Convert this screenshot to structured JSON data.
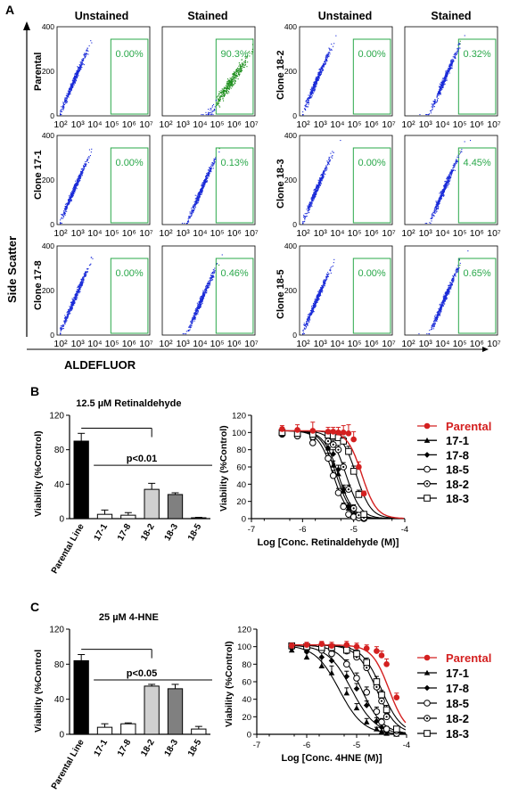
{
  "panels": {
    "A": "A",
    "B": "B",
    "C": "C"
  },
  "flow": {
    "header_unstained": "Unstained",
    "header_stained": "Stained",
    "y_axis_label": "Side Scatter",
    "x_axis_label": "ALDEFLUOR",
    "x_ticks": [
      "10²",
      "10³",
      "10⁴",
      "10⁵",
      "10⁶",
      "10⁷"
    ],
    "y_ticks": [
      "0",
      "200",
      "400"
    ],
    "dot_color": "#1a2bd8",
    "gated_color": "#1f8f1f",
    "gate_color": "#2aa84a",
    "rows": [
      {
        "left_label": "Parental",
        "left_unstained": "0.00%",
        "left_stained": "90.3%",
        "right_label": "Clone 18-2",
        "right_unstained": "0.00%",
        "right_stained": "0.32%"
      },
      {
        "left_label": "Clone 17-1",
        "left_unstained": "0.00%",
        "left_stained": "0.13%",
        "right_label": "Clone 18-3",
        "right_unstained": "0.00%",
        "right_stained": "4.45%"
      },
      {
        "left_label": "Clone 17-8",
        "left_unstained": "0.00%",
        "left_stained": "0.46%",
        "right_label": "Clone 18-5",
        "right_unstained": "0.00%",
        "right_stained": "0.65%"
      }
    ]
  },
  "chart_data": [
    {
      "type": "bar",
      "title": "12.5 µM Retinaldehyde",
      "ylabel": "Viability (%Control)",
      "xlabel": "",
      "categories": [
        "Parental Line",
        "17-1",
        "17-8",
        "18-2",
        "18-3",
        "18-5"
      ],
      "values": [
        90,
        5,
        4,
        34,
        28,
        1
      ],
      "errors": [
        9,
        5,
        3,
        7,
        2,
        0.5
      ],
      "colors": [
        "#000000",
        "#ffffff",
        "#ffffff",
        "#d0d0d0",
        "#808080",
        "#ffffff"
      ],
      "ylim": [
        0,
        120
      ],
      "yticks": [
        "0",
        "40",
        "80",
        "120"
      ],
      "significance": "p<0.01"
    },
    {
      "type": "line",
      "xlabel": "Log [Conc. Retinaldehyde (M)]",
      "ylabel": "Viability (%Control)",
      "xlim": [
        -7,
        -4
      ],
      "ylim": [
        0,
        120
      ],
      "xticks": [
        "-7",
        "-6",
        "-5",
        "-4"
      ],
      "yticks": [
        "0",
        "20",
        "40",
        "60",
        "80",
        "100",
        "120"
      ],
      "x": [
        -6.4,
        -6.1,
        -5.8,
        -5.5,
        -5.4,
        -5.3,
        -5.2,
        -5.1,
        -5.0,
        -4.9,
        -4.8
      ],
      "series": [
        {
          "name": "Parental",
          "color": "#d42020",
          "marker": "circle-filled",
          "ic50": -4.84,
          "hill": 3,
          "values": [
            104,
            103,
            102,
            101,
            101,
            100,
            100,
            99,
            92,
            60,
            29
          ],
          "errors": [
            4,
            6,
            10,
            5,
            5,
            6,
            8,
            10,
            9,
            6,
            3
          ]
        },
        {
          "name": "17-1",
          "color": "#000000",
          "marker": "triangle-filled",
          "ic50": -5.34,
          "hill": 3,
          "values": [
            101,
            99,
            95,
            82,
            62,
            52,
            32,
            12,
            4,
            1,
            0
          ],
          "errors": [
            3,
            4,
            5,
            6,
            5,
            5,
            5,
            4,
            2,
            1,
            0
          ]
        },
        {
          "name": "17-8",
          "color": "#000000",
          "marker": "diamond-filled",
          "ic50": -5.3,
          "hill": 3,
          "values": [
            100,
            98,
            92,
            82,
            75,
            57,
            34,
            14,
            5,
            1,
            0
          ],
          "errors": [
            3,
            4,
            5,
            5,
            5,
            5,
            5,
            4,
            2,
            1,
            0
          ]
        },
        {
          "name": "18-5",
          "color": "#000000",
          "marker": "circle-open",
          "ic50": -5.4,
          "hill": 3,
          "values": [
            98,
            96,
            88,
            70,
            50,
            30,
            14,
            5,
            2,
            1,
            0
          ],
          "errors": [
            3,
            4,
            5,
            6,
            6,
            5,
            4,
            2,
            1,
            1,
            0
          ]
        },
        {
          "name": "18-2",
          "color": "#000000",
          "marker": "circle-dot",
          "ic50": -5.15,
          "hill": 3,
          "values": [
            99,
            96,
            95,
            90,
            86,
            80,
            60,
            34,
            12,
            4,
            1
          ],
          "errors": [
            3,
            5,
            5,
            4,
            5,
            5,
            5,
            5,
            4,
            2,
            1
          ]
        },
        {
          "name": "18-3",
          "color": "#000000",
          "marker": "square-open",
          "ic50": -4.95,
          "hill": 3,
          "values": [
            100,
            99,
            98,
            97,
            96,
            94,
            90,
            78,
            55,
            28,
            5
          ],
          "errors": [
            3,
            4,
            5,
            4,
            4,
            5,
            5,
            6,
            6,
            5,
            2
          ]
        }
      ]
    },
    {
      "type": "bar",
      "title": "25 µM 4-HNE",
      "ylabel": "Viability (%Control",
      "xlabel": "",
      "categories": [
        "Parental Line",
        "17-1",
        "17-8",
        "18-2",
        "18-3",
        "18-5"
      ],
      "values": [
        84,
        8,
        12,
        55,
        52,
        6
      ],
      "errors": [
        7,
        4,
        1,
        2,
        5,
        3
      ],
      "colors": [
        "#000000",
        "#ffffff",
        "#ffffff",
        "#d0d0d0",
        "#808080",
        "#ffffff"
      ],
      "ylim": [
        0,
        120
      ],
      "yticks": [
        "0",
        "40",
        "80",
        "120"
      ],
      "significance": "p<0.05"
    },
    {
      "type": "line",
      "xlabel": "Log [Conc. 4HNE (M)]",
      "ylabel": "Viability (%Control)",
      "xlim": [
        -7,
        -4
      ],
      "ylim": [
        0,
        120
      ],
      "xticks": [
        "-7",
        "-6",
        "-5",
        "-4"
      ],
      "yticks": [
        "0",
        "20",
        "40",
        "60",
        "80",
        "100",
        "120"
      ],
      "x": [
        -6.3,
        -6.0,
        -5.7,
        -5.5,
        -5.2,
        -5.0,
        -4.8,
        -4.6,
        -4.5,
        -4.4,
        -4.2
      ],
      "series": [
        {
          "name": "Parental",
          "color": "#d42020",
          "marker": "circle-filled",
          "ic50": -4.35,
          "hill": 2.5,
          "values": [
            101,
            102,
            103,
            101,
            102,
            100,
            98,
            95,
            90,
            80,
            42
          ],
          "errors": [
            3,
            3,
            3,
            4,
            4,
            4,
            4,
            5,
            5,
            6,
            5
          ]
        },
        {
          "name": "17-1",
          "color": "#000000",
          "marker": "triangle-filled",
          "ic50": -5.35,
          "hill": 1.8,
          "values": [
            96,
            88,
            78,
            70,
            47,
            30,
            14,
            6,
            3,
            1,
            0
          ],
          "errors": [
            4,
            6,
            10,
            8,
            6,
            5,
            4,
            2,
            1,
            1,
            0
          ]
        },
        {
          "name": "17-8",
          "color": "#000000",
          "marker": "diamond-filled",
          "ic50": -5.1,
          "hill": 1.8,
          "values": [
            98,
            94,
            88,
            84,
            66,
            52,
            33,
            15,
            8,
            3,
            1
          ],
          "errors": [
            4,
            5,
            6,
            6,
            6,
            6,
            5,
            4,
            3,
            2,
            1
          ]
        },
        {
          "name": "18-5",
          "color": "#000000",
          "marker": "circle-open",
          "ic50": -4.9,
          "hill": 2,
          "values": [
            100,
            98,
            96,
            92,
            80,
            64,
            48,
            26,
            14,
            6,
            1
          ],
          "errors": [
            3,
            4,
            4,
            5,
            5,
            6,
            6,
            5,
            4,
            3,
            1
          ]
        },
        {
          "name": "18-2",
          "color": "#000000",
          "marker": "circle-dot",
          "ic50": -4.6,
          "hill": 2.2,
          "values": [
            100,
            99,
            100,
            98,
            95,
            88,
            76,
            54,
            38,
            20,
            4
          ],
          "errors": [
            3,
            3,
            4,
            4,
            4,
            5,
            5,
            5,
            5,
            4,
            2
          ]
        },
        {
          "name": "18-3",
          "color": "#000000",
          "marker": "square-open",
          "ic50": -4.5,
          "hill": 2.2,
          "values": [
            101,
            100,
            99,
            99,
            96,
            92,
            82,
            60,
            45,
            28,
            6
          ],
          "errors": [
            3,
            3,
            4,
            4,
            4,
            4,
            5,
            6,
            5,
            5,
            2
          ]
        }
      ]
    }
  ]
}
